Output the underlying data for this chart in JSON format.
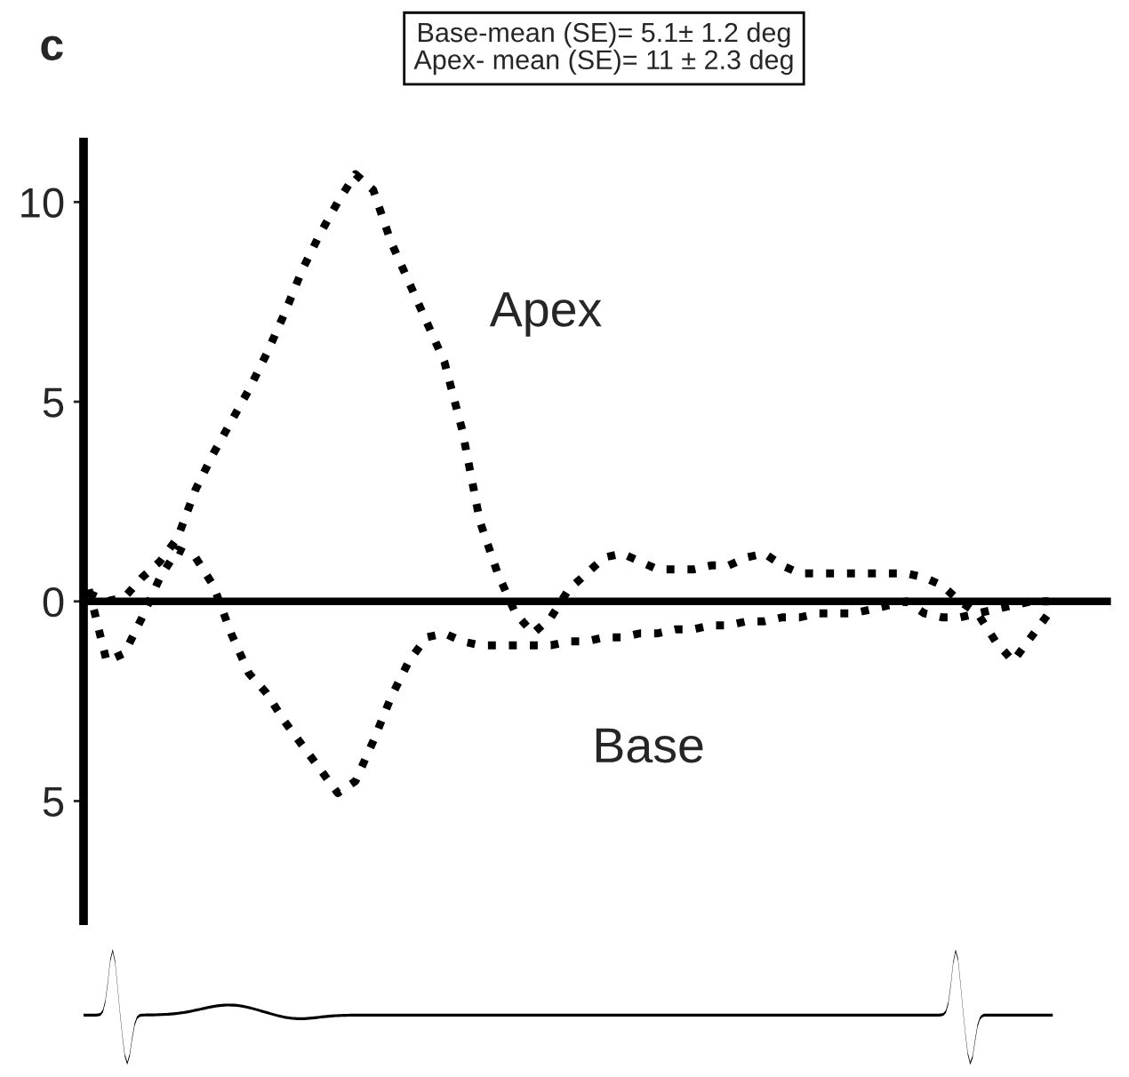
{
  "chart_data": {
    "type": "line",
    "title": "c",
    "annotations": [
      "Base-mean (SE)= 5.1± 1.2 deg\nApex- mean (SE)= 11 ± 2.3 deg"
    ],
    "categories": [
      null,
      null,
      null,
      null,
      null,
      null,
      null,
      null,
      null,
      null,
      null,
      null,
      null,
      null,
      null,
      null,
      null,
      null,
      null,
      null,
      null,
      null,
      null,
      null,
      null,
      null,
      null,
      null,
      null,
      null,
      null,
      null,
      null,
      null,
      null,
      null,
      null,
      null,
      null,
      null,
      null,
      null,
      null,
      null,
      null,
      null,
      null,
      null,
      null,
      null,
      null,
      null,
      null,
      null,
      null
    ],
    "series": [
      {
        "name": "Apex",
        "color": "#000000",
        "values": [
          0.2,
          0.0,
          0.1,
          0.6,
          1.0,
          1.6,
          2.8,
          3.7,
          4.5,
          5.3,
          6.2,
          7.2,
          8.3,
          9.2,
          10.0,
          10.7,
          10.3,
          9.0,
          8.0,
          7.0,
          6.0,
          4.3,
          2.0,
          0.7,
          -0.3,
          -0.8,
          -0.4,
          0.3,
          0.7,
          1.1,
          1.2,
          1.0,
          0.8,
          0.8,
          0.8,
          0.9,
          0.9,
          1.1,
          1.2,
          0.9,
          0.7,
          0.7,
          0.7,
          0.7,
          0.7,
          0.7,
          0.7,
          0.6,
          0.4,
          0.0,
          -0.3,
          -1.0,
          -1.5,
          -0.9,
          -0.3
        ]
      },
      {
        "name": "Base",
        "color": "#000000",
        "values": [
          0.3,
          -1.5,
          -1.3,
          -0.4,
          0.6,
          1.3,
          1.1,
          0.4,
          -0.8,
          -1.8,
          -2.3,
          -3.0,
          -3.6,
          -4.2,
          -4.8,
          -4.5,
          -3.5,
          -2.4,
          -1.5,
          -0.9,
          -0.8,
          -1.0,
          -1.1,
          -1.1,
          -1.1,
          -1.1,
          -1.1,
          -1.0,
          -1.0,
          -0.9,
          -0.9,
          -0.8,
          -0.8,
          -0.7,
          -0.7,
          -0.6,
          -0.6,
          -0.5,
          -0.5,
          -0.4,
          -0.4,
          -0.3,
          -0.3,
          -0.3,
          -0.2,
          -0.1,
          0.0,
          -0.3,
          -0.4,
          -0.4,
          -0.3,
          -0.2,
          -0.1,
          0.0,
          0.0
        ]
      }
    ],
    "ylim": [
      -8,
      11.5
    ],
    "yticks": [
      10,
      5,
      0,
      {
        "value": -5,
        "label": "5"
      }
    ],
    "ref_lines": [
      {
        "axis": "y",
        "value": 0,
        "color": "#000000"
      }
    ],
    "line_style": "dotted",
    "grid": false,
    "legend": false
  }
}
